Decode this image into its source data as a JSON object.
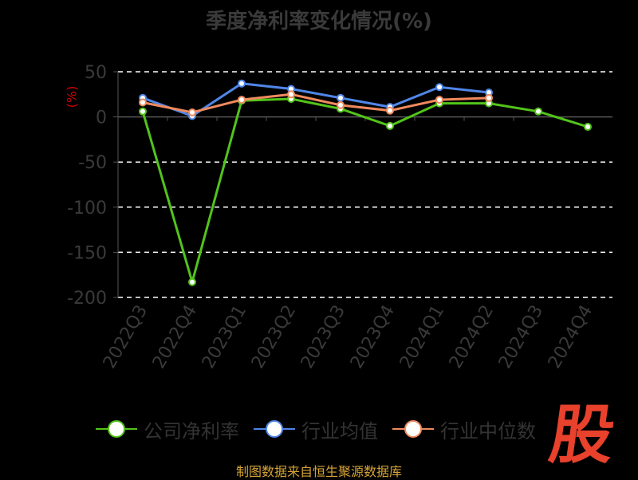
{
  "chart_data": {
    "type": "line",
    "title": "季度净利率变化情况(%)",
    "ylabel": "(%)",
    "categories": [
      "2022Q3",
      "2022Q4",
      "2023Q1",
      "2023Q2",
      "2023Q3",
      "2023Q4",
      "2024Q1",
      "2024Q2",
      "2024Q3",
      "2024Q4"
    ],
    "ylim": [
      -200,
      50
    ],
    "yticks": [
      50,
      0,
      -50,
      -100,
      -150,
      -200
    ],
    "grid": true,
    "series": [
      {
        "name": "公司净利率",
        "color": "#52c41a",
        "values": [
          6,
          -183,
          18,
          20,
          9,
          -10,
          15,
          15,
          6,
          -11
        ]
      },
      {
        "name": "行业均值",
        "color": "#4f86e8",
        "values": [
          21,
          1,
          37,
          31,
          21,
          11,
          33,
          27,
          null,
          null
        ]
      },
      {
        "name": "行业中位数",
        "color": "#f08a5d",
        "values": [
          16,
          5,
          19,
          25,
          13,
          7,
          19,
          21,
          null,
          null
        ]
      }
    ],
    "legend_position": "bottom"
  },
  "source": "制图数据来自恒生聚源数据库",
  "logo_text": "股"
}
